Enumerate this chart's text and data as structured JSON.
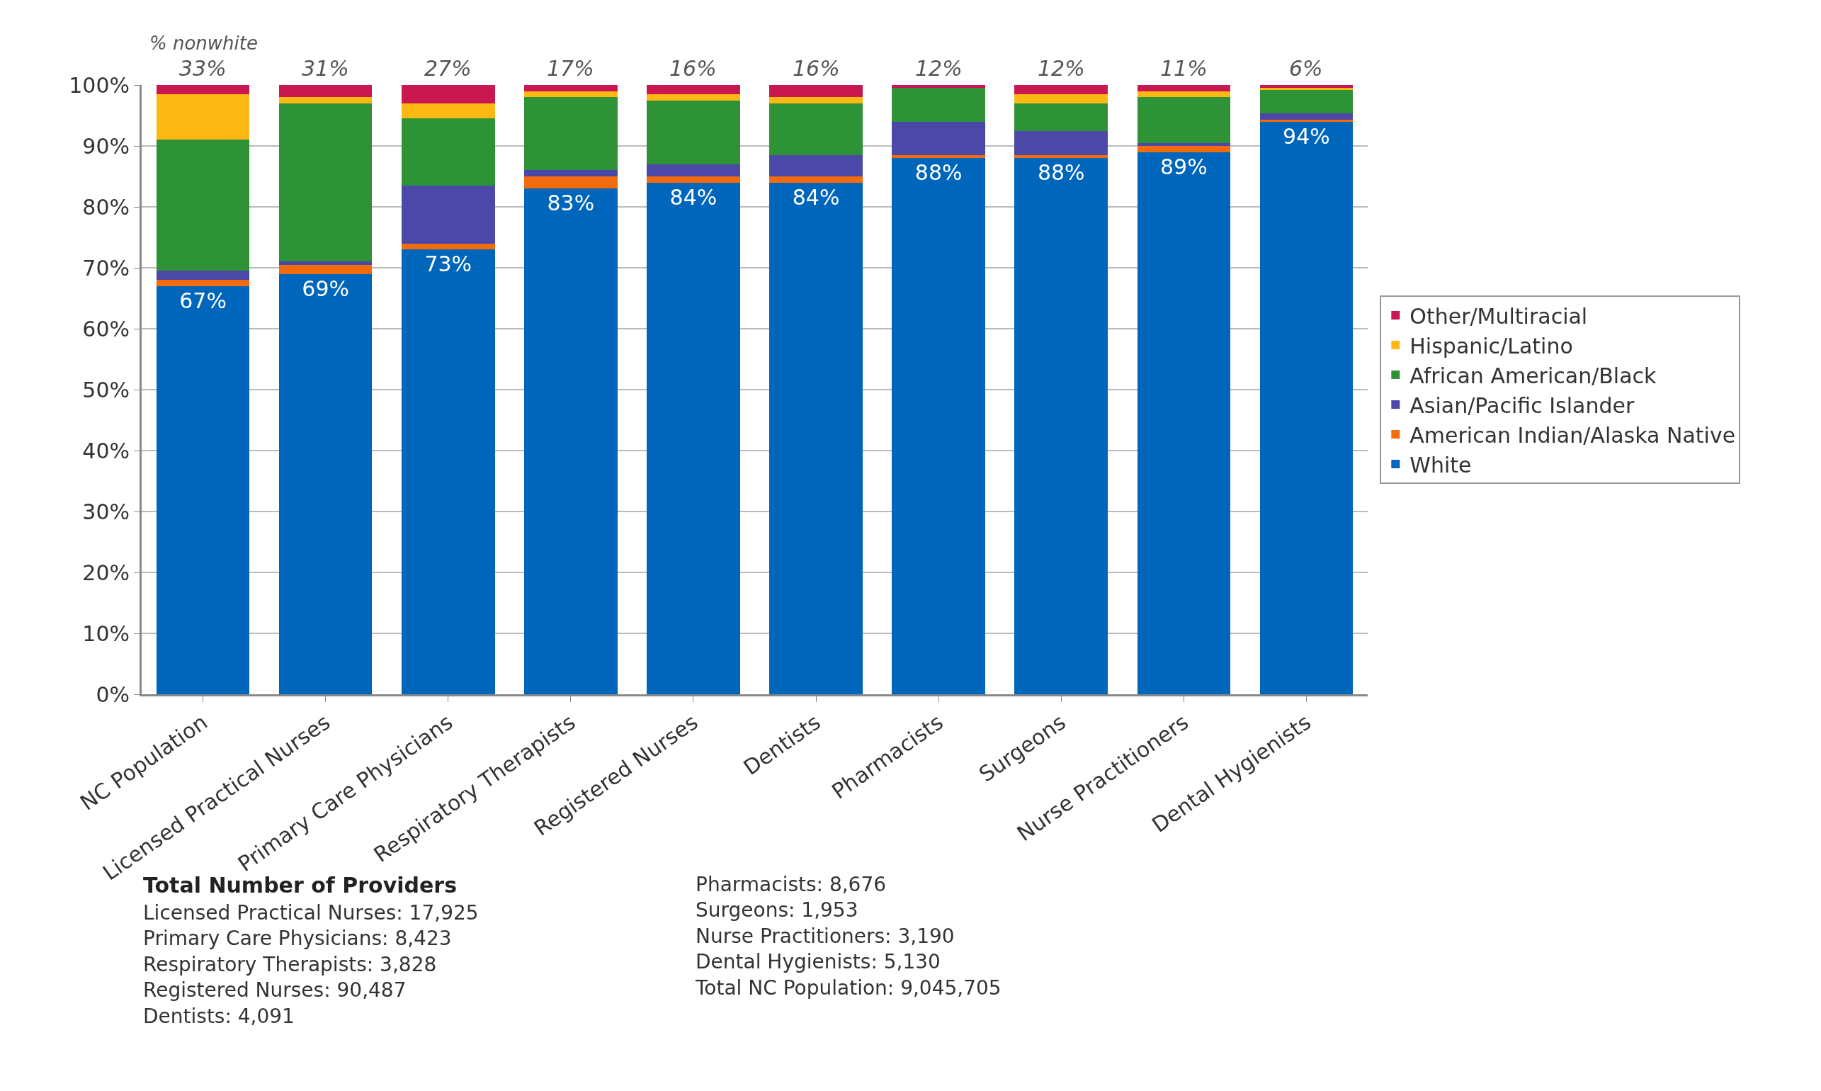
{
  "chart_data": {
    "type": "bar",
    "stacked": true,
    "categories": [
      "NC Population",
      "Licensed Practical Nurses",
      "Primary Care Physicians",
      "Respiratory Therapists",
      "Registered Nurses",
      "Dentists",
      "Pharmacists",
      "Surgeons",
      "Nurse Practitioners",
      "Dental Hygienists"
    ],
    "series": [
      {
        "name": "White",
        "color": "#0066bb",
        "values": [
          67,
          69,
          73,
          83,
          84,
          84,
          88,
          88,
          89,
          94
        ],
        "value_labels": [
          "67%",
          "69%",
          "73%",
          "83%",
          "84%",
          "84%",
          "88%",
          "88%",
          "89%",
          "94%"
        ]
      },
      {
        "name": "American Indian/Alaska Native",
        "color": "#f26c0d",
        "values": [
          1,
          1.5,
          1,
          2,
          1,
          1,
          0.5,
          0.5,
          1,
          0.3
        ]
      },
      {
        "name": "Asian/Pacific Islander",
        "color": "#4b48a8",
        "values": [
          1.5,
          0.5,
          9.5,
          1,
          2,
          3.5,
          5.5,
          4,
          0.5,
          1
        ]
      },
      {
        "name": "African American/Black",
        "color": "#2e9337",
        "values": [
          21.5,
          26,
          11,
          12,
          10.5,
          8.5,
          5.5,
          4.5,
          7.5,
          4
        ]
      },
      {
        "name": "Hispanic/Latino",
        "color": "#fdb813",
        "values": [
          7.5,
          1,
          2.5,
          1,
          1,
          1,
          0,
          1.5,
          1,
          0.2
        ]
      },
      {
        "name": "Other/Multiracial",
        "color": "#c8184f",
        "values": [
          1.5,
          2,
          3,
          1,
          1.5,
          2,
          0.5,
          1.5,
          1,
          0.5
        ]
      }
    ],
    "ylim": [
      0,
      100
    ],
    "yticks": [
      {
        "value": 0,
        "label": "0%"
      },
      {
        "value": 10,
        "label": "10%"
      },
      {
        "value": 20,
        "label": "20%"
      },
      {
        "value": 30,
        "label": "30%"
      },
      {
        "value": 40,
        "label": "40%"
      },
      {
        "value": 50,
        "label": "50%"
      },
      {
        "value": 60,
        "label": "60%"
      },
      {
        "value": 70,
        "label": "70%"
      },
      {
        "value": 80,
        "label": "80%"
      },
      {
        "value": 90,
        "label": "90%"
      },
      {
        "value": 100,
        "label": "100%"
      }
    ],
    "grid": "y",
    "legend": "right",
    "annotations": [
      {
        "text": "% nonwhite"
      },
      {
        "text": "33%",
        "x": "NC Population",
        "y": 100
      },
      {
        "text": "31%",
        "x": "Licensed Practical Nurses",
        "y": 100
      },
      {
        "text": "27%",
        "x": "Primary Care Physicians",
        "y": 100
      },
      {
        "text": "17%",
        "x": "Respiratory Therapists",
        "y": 100
      },
      {
        "text": "16%",
        "x": "Registered Nurses",
        "y": 100
      },
      {
        "text": "16%",
        "x": "Dentists",
        "y": 100
      },
      {
        "text": "12%",
        "x": "Pharmacists",
        "y": 100
      },
      {
        "text": "12%",
        "x": "Surgeons",
        "y": 100
      },
      {
        "text": "11%",
        "x": "Nurse Practitioners",
        "y": 100
      },
      {
        "text": "6%",
        "x": "Dental Hygienists",
        "y": 100
      },
      "Total Number of Providers",
      "Licensed Practical Nurses: 17,925",
      "Primary Care Physicians: 8,423",
      "Respiratory Therapists: 3,828",
      "Registered Nurses: 90,487",
      "Dentists: 4,091",
      "Pharmacists: 8,676",
      "Surgeons: 1,953",
      "Nurse Practitioners: 3,190",
      "Dental Hygienists: 5,130",
      "Total NC Population: 9,045,705"
    ]
  }
}
